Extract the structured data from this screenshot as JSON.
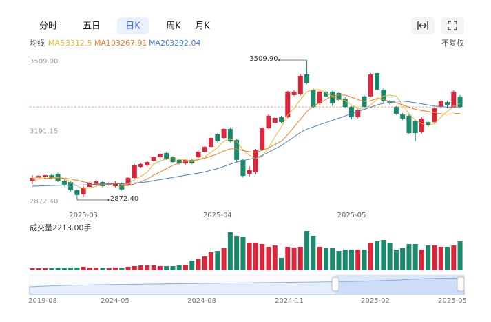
{
  "tabs": [
    "分时",
    "五日",
    "日K",
    "周K",
    "月K"
  ],
  "active_tab": 2,
  "ma_title": "均线",
  "adjust": "不复权",
  "chart_data": {
    "type": "candlestick",
    "categories": [
      null,
      null,
      null,
      null,
      null,
      null,
      null,
      null,
      "2025-03",
      null,
      null,
      null,
      null,
      null,
      null,
      null,
      null,
      null,
      null,
      null,
      null,
      null,
      null,
      null,
      null,
      null,
      null,
      null,
      null,
      "2025-04",
      null,
      null,
      null,
      null,
      null,
      null,
      null,
      null,
      null,
      null,
      null,
      null,
      null,
      null,
      null,
      null,
      null,
      null,
      null,
      null,
      "2025-05",
      null,
      null,
      null,
      null,
      null,
      null,
      null,
      null,
      null,
      null,
      null,
      null,
      null,
      null,
      null,
      null,
      null
    ],
    "open": [
      2960,
      2973,
      2976,
      2985,
      2992,
      2960,
      2954,
      2917,
      2898,
      2932,
      2942,
      2954,
      2942,
      2935,
      2948,
      2942,
      2973,
      3023,
      3030,
      3051,
      3067,
      3086,
      3067,
      3055,
      3039,
      3055,
      3067,
      3092,
      3114,
      3171,
      3155,
      3196,
      3146,
      3055,
      2992,
      2998,
      3102,
      3199,
      3224,
      3249,
      3249,
      3350,
      3353,
      3444,
      3375,
      3312,
      3366,
      3366,
      3359,
      3334,
      3296,
      3249,
      3344,
      3344,
      3450,
      3375,
      3322,
      3296,
      3262,
      3256,
      3234,
      3180,
      3227,
      3227,
      3296,
      3318,
      3296,
      3344
    ],
    "high": [
      2985,
      2990,
      2992,
      2990,
      2996,
      2965,
      2958,
      2920,
      2935,
      2956,
      2963,
      2960,
      2955,
      2958,
      2952,
      2978,
      3035,
      3042,
      3050,
      3072,
      3086,
      3090,
      3072,
      3060,
      3058,
      3060,
      3096,
      3118,
      3160,
      3176,
      3200,
      3202,
      3150,
      3060,
      3025,
      3105,
      3205,
      3262,
      3252,
      3255,
      3370,
      3372,
      3445,
      3509.9,
      3380,
      3372,
      3372,
      3370,
      3365,
      3340,
      3300,
      3286,
      3350,
      3450,
      3455,
      3380,
      3328,
      3300,
      3268,
      3262,
      3238,
      3248,
      3232,
      3295,
      3328,
      3325,
      3372,
      3350
    ],
    "low": [
      2945,
      2965,
      2970,
      2966,
      2955,
      2935,
      2910,
      2872.4,
      2890,
      2926,
      2936,
      2930,
      2936,
      2930,
      2915,
      2938,
      2968,
      3018,
      3025,
      3046,
      3062,
      3055,
      3040,
      3034,
      3034,
      3035,
      3062,
      3088,
      3110,
      3134,
      3150,
      3134,
      3045,
      2975,
      2980,
      2990,
      3098,
      3195,
      3220,
      3222,
      3245,
      3345,
      3348,
      3400,
      3290,
      3305,
      3338,
      3300,
      3322,
      3290,
      3240,
      3244,
      3290,
      3340,
      3370,
      3315,
      3306,
      3260,
      3236,
      3172,
      3140,
      3176,
      3206,
      3222,
      3290,
      3290,
      3292,
      3290
    ],
    "close": [
      2973,
      2982,
      2985,
      2973,
      2960,
      2942,
      2917,
      2895,
      2929,
      2951,
      2957,
      2935,
      2948,
      2951,
      2920,
      2973,
      3030,
      3036,
      3045,
      3067,
      3080,
      3061,
      3045,
      3039,
      3055,
      3039,
      3092,
      3114,
      3155,
      3139,
      3196,
      3139,
      3055,
      2982,
      3008,
      3099,
      3199,
      3256,
      3246,
      3227,
      3366,
      3366,
      3438,
      3406,
      3296,
      3366,
      3344,
      3312,
      3328,
      3296,
      3249,
      3281,
      3296,
      3444,
      3375,
      3322,
      3312,
      3265,
      3243,
      3177,
      3177,
      3243,
      3212,
      3290,
      3322,
      3306,
      3366,
      3296
    ],
    "up_color": "#d9263b",
    "down_color": "#19896c",
    "ylim": [
      2872.4,
      3509.9
    ],
    "yticks": [
      {
        "value": 3509.9,
        "label": "3509.90"
      },
      3191.15,
      {
        "value": 2872.4,
        "label": "2872.40"
      }
    ],
    "ma": [
      {
        "name": "MA5",
        "color": "#f0b429",
        "values": [
          2970,
          2975,
          2978,
          2977,
          2975,
          2968,
          2955,
          2935,
          2925,
          2927,
          2935,
          2940,
          2945,
          2950,
          2942,
          2945,
          2965,
          2980,
          3000,
          3035,
          3050,
          3058,
          3060,
          3058,
          3055,
          3048,
          3054,
          3068,
          3090,
          3110,
          3140,
          3150,
          3140,
          3100,
          3075,
          3060,
          3070,
          3110,
          3160,
          3205,
          3260,
          3290,
          3330,
          3365,
          3375,
          3375,
          3360,
          3345,
          3330,
          3325,
          3305,
          3290,
          3285,
          3305,
          3330,
          3345,
          3350,
          3345,
          3305,
          3265,
          3235,
          3220,
          3210,
          3220,
          3250,
          3275,
          3300,
          3312.5
        ]
      },
      {
        "name": "MA10",
        "color": "#f07a1f",
        "values": [
          2965,
          2968,
          2970,
          2972,
          2973,
          2972,
          2968,
          2962,
          2955,
          2950,
          2948,
          2945,
          2942,
          2940,
          2938,
          2938,
          2945,
          2955,
          2968,
          2985,
          3000,
          3015,
          3030,
          3040,
          3048,
          3052,
          3056,
          3062,
          3072,
          3082,
          3095,
          3105,
          3105,
          3098,
          3092,
          3090,
          3098,
          3110,
          3125,
          3140,
          3170,
          3205,
          3240,
          3275,
          3300,
          3315,
          3330,
          3345,
          3350,
          3350,
          3340,
          3330,
          3320,
          3325,
          3335,
          3330,
          3320,
          3315,
          3305,
          3295,
          3285,
          3280,
          3275,
          3270,
          3265,
          3262,
          3265,
          3267.91
        ]
      },
      {
        "name": "MA20",
        "color": "#4a7fd6",
        "values": [
          2935,
          2936,
          2937,
          2938,
          2939,
          2940,
          2940,
          2940,
          2941,
          2942,
          2943,
          2944,
          2945,
          2946,
          2947,
          2948,
          2950,
          2952,
          2955,
          2960,
          2965,
          2970,
          2975,
          2980,
          2985,
          2990,
          2995,
          3000,
          3008,
          3015,
          3025,
          3035,
          3045,
          3052,
          3058,
          3064,
          3075,
          3090,
          3105,
          3120,
          3140,
          3160,
          3180,
          3195,
          3205,
          3215,
          3225,
          3235,
          3245,
          3255,
          3265,
          3275,
          3285,
          3295,
          3305,
          3312,
          3318,
          3322,
          3322,
          3320,
          3315,
          3310,
          3305,
          3300,
          3298,
          3296,
          3294,
          3292.04
        ]
      }
    ],
    "annotations": [
      {
        "index": 43,
        "value": 3509.9,
        "text": "3509.90"
      },
      {
        "index": 7,
        "value": 2872.4,
        "text": "2872.40"
      }
    ],
    "volume": {
      "title": "成交量2213.00手",
      "ylim": [
        0,
        3110
      ],
      "values": [
        158,
        158,
        158,
        158,
        211,
        158,
        211,
        211,
        263,
        211,
        211,
        211,
        158,
        211,
        158,
        263,
        316,
        369,
        369,
        369,
        316,
        316,
        316,
        369,
        422,
        738,
        843,
        1054,
        1370,
        1476,
        1686,
        2899,
        2635,
        2530,
        2108,
        2108,
        2003,
        1792,
        1897,
        949,
        1792,
        1739,
        1792,
        3004,
        2635,
        1792,
        1686,
        1686,
        1476,
        1581,
        1581,
        1581,
        1581,
        2108,
        2213,
        2319,
        2108,
        1581,
        1686,
        2003,
        2003,
        1581,
        1897,
        1897,
        1792,
        1792,
        1897,
        2213
      ]
    },
    "navigator": {
      "labels": [
        "2019-08",
        "2024-05",
        "2024-08",
        "2024-11",
        "2025-02",
        "2025-05"
      ]
    }
  }
}
